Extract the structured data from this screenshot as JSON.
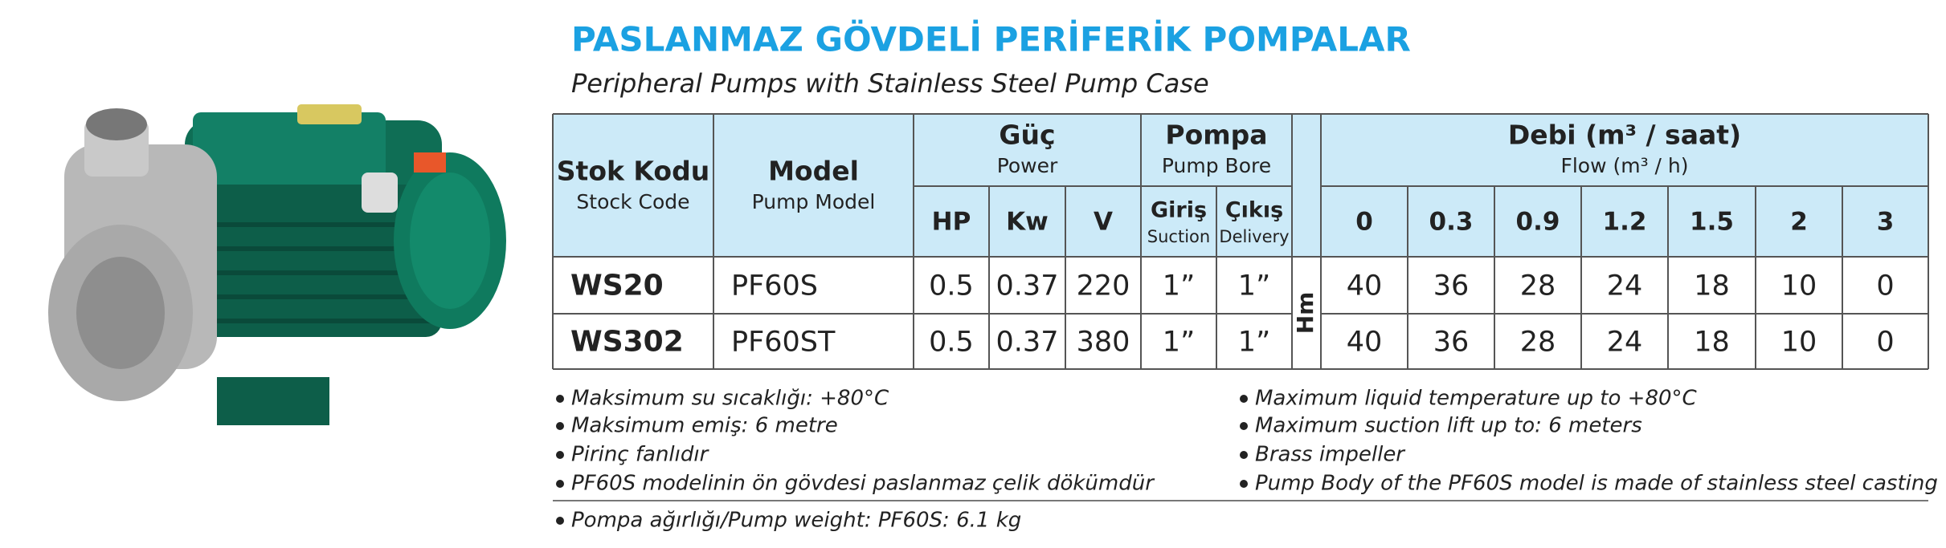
{
  "header": {
    "title": "PASLANMAZ GÖVDELİ PERİFERİK POMPALAR",
    "subtitle": "Peripheral Pumps with Stainless Steel Pump Case"
  },
  "table": {
    "stock_code": {
      "tr": "Stok Kodu",
      "en": "Stock Code"
    },
    "model": {
      "tr": "Model",
      "en": "Pump Model"
    },
    "power": {
      "tr": "Güç",
      "en": "Power",
      "sub": [
        "HP",
        "Kw",
        "V"
      ]
    },
    "pump_bore": {
      "tr": "Pompa",
      "en": "Pump Bore",
      "sub": [
        {
          "tr": "Giriş",
          "en": "Suction"
        },
        {
          "tr": "Çıkış",
          "en": "Delivery"
        }
      ]
    },
    "flow": {
      "tr": "Debi (m³ / saat)",
      "en": "Flow (m³ / h)",
      "sub": [
        "0",
        "0.3",
        "0.9",
        "1.2",
        "1.5",
        "2",
        "3"
      ]
    },
    "head_unit": "Hm",
    "rows": [
      [
        "WS20",
        "PF60S",
        "0.5",
        "0.37",
        "220",
        "1”",
        "1”",
        "40",
        "36",
        "28",
        "24",
        "18",
        "10",
        "0"
      ],
      [
        "WS302",
        "PF60ST",
        "0.5",
        "0.37",
        "380",
        "1”",
        "1”",
        "40",
        "36",
        "28",
        "24",
        "18",
        "10",
        "0"
      ]
    ]
  },
  "notes_tr": [
    "Maksimum su sıcaklığı: +80°C",
    "Maksimum emiş: 6 metre",
    "Pirinç fanlıdır",
    "PF60S modelinin ön gövdesi paslanmaz çelik dökümdür"
  ],
  "notes_en": [
    "Maximum liquid temperature  up to +80°C",
    "Maximum suction lift up to: 6 meters",
    "Brass impeller",
    "Pump Body of the PF60S model is made of stainless steel casting"
  ],
  "footnote": "Pompa ağırlığı/Pump weight: PF60S: 6.1 kg"
}
